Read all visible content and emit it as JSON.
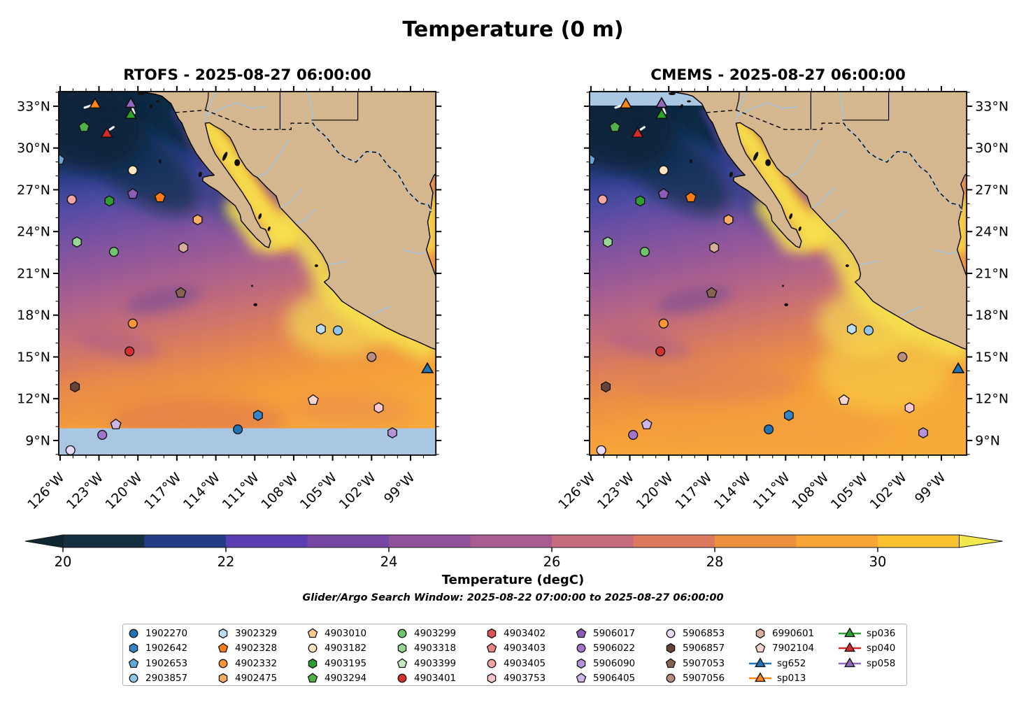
{
  "figure": {
    "title": "Temperature (0 m)"
  },
  "panels": [
    {
      "id": "rtofs",
      "title": "RTOFS - 2025-08-27 06:00:00",
      "lat_labels_side": "left",
      "nodata_region": "south-band"
    },
    {
      "id": "cmems",
      "title": "CMEMS - 2025-08-27 06:00:00",
      "lat_labels_side": "right",
      "nodata_region": "northwest-strip"
    }
  ],
  "axes": {
    "lat_ticks": [
      {
        "value": 33,
        "label": "33°N"
      },
      {
        "value": 30,
        "label": "30°N"
      },
      {
        "value": 27,
        "label": "27°N"
      },
      {
        "value": 24,
        "label": "24°N"
      },
      {
        "value": 21,
        "label": "21°N"
      },
      {
        "value": 18,
        "label": "18°N"
      },
      {
        "value": 15,
        "label": "15°N"
      },
      {
        "value": 12,
        "label": "12°N"
      },
      {
        "value": 9,
        "label": "9°N"
      }
    ],
    "lon_ticks": [
      {
        "value": -126,
        "label": "126°W"
      },
      {
        "value": -123,
        "label": "123°W"
      },
      {
        "value": -120,
        "label": "120°W"
      },
      {
        "value": -117,
        "label": "117°W"
      },
      {
        "value": -114,
        "label": "114°W"
      },
      {
        "value": -111,
        "label": "111°W"
      },
      {
        "value": -108,
        "label": "108°W"
      },
      {
        "value": -105,
        "label": "105°W"
      },
      {
        "value": -102,
        "label": "102°W"
      },
      {
        "value": -99,
        "label": "99°W"
      }
    ]
  },
  "colorbar": {
    "label": "Temperature (degC)",
    "subtitle": "Glider/Argo Search Window: 2025-08-22 07:00:00 to 2025-08-27 06:00:00",
    "tick_values": [
      20,
      22,
      24,
      26,
      28,
      30
    ],
    "range": [
      20,
      31
    ],
    "segment_colors": [
      "#142f40",
      "#243c86",
      "#5a3db0",
      "#7747a6",
      "#90519b",
      "#a95c90",
      "#c56b7e",
      "#dd7a5e",
      "#ee913f",
      "#f7a635",
      "#f9c02f"
    ],
    "under_color": "#0f2733",
    "over_color": "#f2e94f"
  },
  "map_colors": {
    "land": "#d4b78f",
    "coastline": "#000000",
    "missing_data": "#a9c7e3",
    "river": "#9ec7ea"
  },
  "legend": {
    "columns": [
      [
        {
          "id": "1902270",
          "shape": "circle",
          "color": "#2274b5"
        },
        {
          "id": "1902642",
          "shape": "hexagon",
          "color": "#3585c6"
        },
        {
          "id": "1902653",
          "shape": "pentagon",
          "color": "#61a6d4"
        },
        {
          "id": "2903857",
          "shape": "circle",
          "color": "#8fc6e8"
        }
      ],
      [
        {
          "id": "3902329",
          "shape": "hexagon",
          "color": "#bcdcf0"
        },
        {
          "id": "4902328",
          "shape": "pentagon",
          "color": "#f97c16"
        },
        {
          "id": "4902332",
          "shape": "circle",
          "color": "#fb9637"
        },
        {
          "id": "4902475",
          "shape": "hexagon",
          "color": "#fcae63"
        }
      ],
      [
        {
          "id": "4903010",
          "shape": "pentagon",
          "color": "#fdc98e"
        },
        {
          "id": "4903182",
          "shape": "circle",
          "color": "#fde4c2"
        },
        {
          "id": "4903195",
          "shape": "hexagon",
          "color": "#2f9d31"
        },
        {
          "id": "4903294",
          "shape": "pentagon",
          "color": "#4fb04c"
        }
      ],
      [
        {
          "id": "4903299",
          "shape": "circle",
          "color": "#6fc46d"
        },
        {
          "id": "4903318",
          "shape": "hexagon",
          "color": "#97d694"
        },
        {
          "id": "4903399",
          "shape": "pentagon",
          "color": "#c5eac0"
        },
        {
          "id": "4903401",
          "shape": "circle",
          "color": "#d33131"
        }
      ],
      [
        {
          "id": "4903402",
          "shape": "hexagon",
          "color": "#dd5252"
        },
        {
          "id": "4903403",
          "shape": "pentagon",
          "color": "#ea8585"
        },
        {
          "id": "4903405",
          "shape": "circle",
          "color": "#f5a4a4"
        },
        {
          "id": "4903753",
          "shape": "hexagon",
          "color": "#fcc6cf"
        }
      ],
      [
        {
          "id": "5906017",
          "shape": "pentagon",
          "color": "#8a5cb8"
        },
        {
          "id": "5906022",
          "shape": "circle",
          "color": "#a076ca"
        },
        {
          "id": "5906090",
          "shape": "hexagon",
          "color": "#b693d8"
        },
        {
          "id": "5906405",
          "shape": "pentagon",
          "color": "#cfb6e6"
        }
      ],
      [
        {
          "id": "5906853",
          "shape": "circle",
          "color": "#e9daf5"
        },
        {
          "id": "5906857",
          "shape": "hexagon",
          "color": "#66443a"
        },
        {
          "id": "5907053",
          "shape": "pentagon",
          "color": "#8a6253"
        },
        {
          "id": "5907056",
          "shape": "circle",
          "color": "#b98d7d"
        }
      ],
      [
        {
          "id": "6990601",
          "shape": "hexagon",
          "color": "#d8ad9e"
        },
        {
          "id": "7902104",
          "shape": "pentagon",
          "color": "#f5d5ce"
        },
        {
          "id": "sg652",
          "shape": "glider",
          "color": "#2274b5"
        },
        {
          "id": "sp013",
          "shape": "glider",
          "color": "#fd8716"
        }
      ],
      [
        {
          "id": "sp036",
          "shape": "glider",
          "color": "#2ca32c"
        },
        {
          "id": "sp040",
          "shape": "glider",
          "color": "#d62a2a"
        },
        {
          "id": "sp058",
          "shape": "glider",
          "color": "#9468bd"
        }
      ]
    ]
  },
  "chart_data": {
    "type": "heatmap",
    "subtype": "sea-surface-temperature comparison maps with float/glider scatter",
    "extent": {
      "lon": [
        -126.1,
        -97.05
      ],
      "lat": [
        7.95,
        34.05
      ]
    },
    "temperature_unit": "degC",
    "colormap_range": [
      20,
      31
    ],
    "markers": [
      {
        "id": "1902270",
        "shape": "circle",
        "color": "#2274b5",
        "lon": -112.3,
        "lat": 9.8
      },
      {
        "id": "1902642",
        "shape": "hexagon",
        "color": "#3585c6",
        "lon": -110.75,
        "lat": 10.8
      },
      {
        "id": "1902653",
        "shape": "pentagon",
        "color": "#61a6d4",
        "lon": -126.05,
        "lat": 29.15
      },
      {
        "id": "2903857",
        "shape": "circle",
        "color": "#8fc6e8",
        "lon": -104.6,
        "lat": 16.9
      },
      {
        "id": "3902329",
        "shape": "hexagon",
        "color": "#bcdcf0",
        "lon": -105.9,
        "lat": 17.0
      },
      {
        "id": "4902328",
        "shape": "pentagon",
        "color": "#f97c16",
        "lon": -118.3,
        "lat": 26.45
      },
      {
        "id": "4902332",
        "shape": "circle",
        "color": "#fb9637",
        "lon": -120.4,
        "lat": 17.4
      },
      {
        "id": "4902475",
        "shape": "hexagon",
        "color": "#fcae63",
        "lon": -115.4,
        "lat": 24.85
      },
      {
        "id": "4903182",
        "shape": "circle",
        "color": "#fde4c2",
        "lon": -120.4,
        "lat": 28.4
      },
      {
        "id": "4903195",
        "shape": "hexagon",
        "color": "#2f9d31",
        "lon": -122.2,
        "lat": 26.2
      },
      {
        "id": "4903294",
        "shape": "pentagon",
        "color": "#4fb04c",
        "lon": -124.15,
        "lat": 31.5
      },
      {
        "id": "4903299",
        "shape": "circle",
        "color": "#6fc46d",
        "lon": -121.85,
        "lat": 22.55
      },
      {
        "id": "4903318",
        "shape": "hexagon",
        "color": "#97d694",
        "lon": -124.7,
        "lat": 23.25
      },
      {
        "id": "4903401",
        "shape": "circle",
        "color": "#d33131",
        "lon": -120.65,
        "lat": 15.4
      },
      {
        "id": "4903405",
        "shape": "circle",
        "color": "#f5a4a4",
        "lon": -125.1,
        "lat": 26.3
      },
      {
        "id": "4903753",
        "shape": "hexagon",
        "color": "#fcc6cf",
        "lon": -101.45,
        "lat": 11.35
      },
      {
        "id": "5906017",
        "shape": "pentagon",
        "color": "#8a5cb8",
        "lon": -120.4,
        "lat": 26.7
      },
      {
        "id": "5906022",
        "shape": "circle",
        "color": "#a076ca",
        "lon": -122.75,
        "lat": 9.4
      },
      {
        "id": "5906090",
        "shape": "hexagon",
        "color": "#b693d8",
        "lon": -100.4,
        "lat": 9.55
      },
      {
        "id": "5906405",
        "shape": "pentagon",
        "color": "#cfb6e6",
        "lon": -121.7,
        "lat": 10.15
      },
      {
        "id": "5906853",
        "shape": "circle",
        "color": "#e9daf5",
        "lon": -125.2,
        "lat": 8.3
      },
      {
        "id": "5906857",
        "shape": "hexagon",
        "color": "#66443a",
        "lon": -124.85,
        "lat": 12.85
      },
      {
        "id": "5907053",
        "shape": "pentagon",
        "color": "#8a6253",
        "lon": -116.7,
        "lat": 19.6
      },
      {
        "id": "5907056",
        "shape": "circle",
        "color": "#b98d7d",
        "lon": -102.0,
        "lat": 15.0
      },
      {
        "id": "6990601",
        "shape": "hexagon",
        "color": "#d8ad9e",
        "lon": -116.5,
        "lat": 22.85
      },
      {
        "id": "7902104",
        "shape": "pentagon",
        "color": "#f5d5ce",
        "lon": -106.5,
        "lat": 11.9
      },
      {
        "id": "sg652",
        "shape": "triangle",
        "color": "#2274b5",
        "lon": -97.7,
        "lat": 14.1
      },
      {
        "id": "sp013",
        "shape": "triangle",
        "color": "#fd8716",
        "lon": -123.3,
        "lat": 33.1
      },
      {
        "id": "sp036",
        "shape": "triangle",
        "color": "#2ca32c",
        "lon": -120.55,
        "lat": 32.35
      },
      {
        "id": "sp040",
        "shape": "triangle",
        "color": "#d62a2a",
        "lon": -122.4,
        "lat": 31.0
      },
      {
        "id": "sp058",
        "shape": "triangle",
        "color": "#9468bd",
        "lon": -120.55,
        "lat": 33.15
      }
    ],
    "glider_tracks": [
      [
        [
          -124.1,
          32.9
        ],
        [
          -123.6,
          33.05
        ]
      ],
      [
        [
          -122.15,
          31.33
        ],
        [
          -121.88,
          31.5
        ]
      ],
      [
        [
          -120.4,
          32.8
        ],
        [
          -120.28,
          32.5
        ]
      ]
    ]
  }
}
